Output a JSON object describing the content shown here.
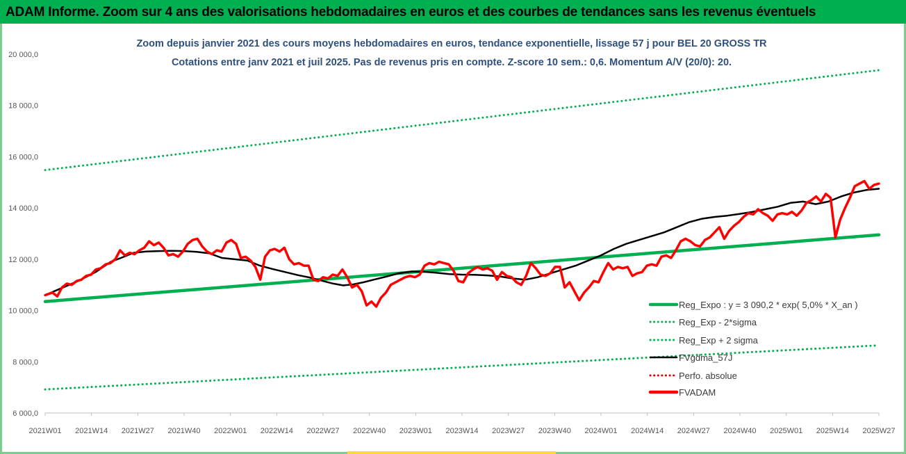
{
  "banner": {
    "title": "ADAM Informe. Zoom sur 4 ans des valorisations hebdomadaires en euros et des courbes de tendances sans les revenus éventuels"
  },
  "chart_data": {
    "type": "line",
    "title_line1": "Zoom depuis janvier 2021 des cours moyens hebdomadaires en euros, tendance exponentielle, lissage 57 j pour BEL 20 GROSS TR",
    "title_line2": "Cotations entre janv 2021 et juil 2025. Pas de revenus pris en compte. Z-score 10 sem.: 0,6. Momentum A/V (20/0): 20.",
    "x_ticks": [
      "2021W01",
      "2021W14",
      "2021W27",
      "2021W40",
      "2022W01",
      "2022W14",
      "2022W27",
      "2022W40",
      "2023W01",
      "2023W14",
      "2023W27",
      "2023W40",
      "2024W01",
      "2024W14",
      "2024W27",
      "2024W40",
      "2025W01",
      "2025W14",
      "2025W27"
    ],
    "y_ticks": [
      "6 000,0",
      "8 000,0",
      "10 000,0",
      "12 000,0",
      "14 000,0",
      "16 000,0",
      "18 000,0",
      "20 000,0"
    ],
    "ylim": [
      6000,
      20000
    ],
    "x_range_weeks": [
      0,
      234
    ],
    "grid": false,
    "legend_position": "bottom-right",
    "series": [
      {
        "name": "Reg_Expo : y = 3 090,2 * exp( 5,0% *  X_an )",
        "color": "#00b050",
        "style": "solid-thick",
        "points": [
          [
            0,
            10350
          ],
          [
            234,
            12950
          ]
        ]
      },
      {
        "name": "Reg_Exp - 2*sigma",
        "color": "#00b050",
        "style": "dotted",
        "points": [
          [
            0,
            6920
          ],
          [
            234,
            8640
          ]
        ]
      },
      {
        "name": "Reg_Exp + 2 sigma",
        "color": "#00b050",
        "style": "dotted",
        "points": [
          [
            0,
            15480
          ],
          [
            234,
            19380
          ]
        ]
      },
      {
        "name": "FVgdma_57J",
        "color": "#000000",
        "style": "solid",
        "points": [
          [
            0,
            10600
          ],
          [
            6,
            10850
          ],
          [
            13,
            11150
          ],
          [
            20,
            11500
          ],
          [
            26,
            11900
          ],
          [
            30,
            12050
          ],
          [
            35,
            12250
          ],
          [
            40,
            12300
          ],
          [
            45,
            12320
          ],
          [
            50,
            12330
          ],
          [
            55,
            12320
          ],
          [
            60,
            12290
          ],
          [
            65,
            12230
          ],
          [
            70,
            12050
          ],
          [
            75,
            12000
          ],
          [
            80,
            11950
          ],
          [
            85,
            11750
          ],
          [
            90,
            11620
          ],
          [
            95,
            11500
          ],
          [
            100,
            11380
          ],
          [
            105,
            11280
          ],
          [
            110,
            11150
          ],
          [
            114,
            11050
          ],
          [
            118,
            10980
          ],
          [
            122,
            11020
          ],
          [
            126,
            11100
          ],
          [
            130,
            11200
          ],
          [
            135,
            11320
          ],
          [
            140,
            11450
          ],
          [
            145,
            11520
          ],
          [
            150,
            11510
          ],
          [
            155,
            11470
          ],
          [
            160,
            11420
          ],
          [
            165,
            11400
          ],
          [
            170,
            11390
          ],
          [
            175,
            11370
          ],
          [
            180,
            11330
          ],
          [
            185,
            11250
          ],
          [
            190,
            11200
          ],
          [
            195,
            11300
          ],
          [
            200,
            11450
          ],
          [
            205,
            11600
          ],
          [
            210,
            11750
          ],
          [
            215,
            11950
          ],
          [
            220,
            12150
          ],
          [
            225,
            12400
          ],
          [
            230,
            12600
          ],
          [
            235,
            12750
          ],
          [
            240,
            12900
          ],
          [
            245,
            13050
          ],
          [
            250,
            13250
          ],
          [
            255,
            13450
          ],
          [
            260,
            13580
          ],
          [
            265,
            13650
          ],
          [
            270,
            13700
          ],
          [
            275,
            13770
          ],
          [
            280,
            13850
          ],
          [
            285,
            13950
          ],
          [
            290,
            14050
          ],
          [
            295,
            14200
          ],
          [
            300,
            14250
          ],
          [
            305,
            14150
          ],
          [
            310,
            14250
          ],
          [
            315,
            14450
          ],
          [
            320,
            14600
          ],
          [
            325,
            14700
          ],
          [
            330,
            14750
          ]
        ]
      },
      {
        "name": "Perfo. absolue",
        "color": "#e00000",
        "style": "dotted",
        "points": []
      },
      {
        "name": "FVADAM",
        "color": "#ff0000",
        "style": "solid-thick",
        "points": [
          [
            0,
            10600
          ],
          [
            3,
            10700
          ],
          [
            5,
            10550
          ],
          [
            7,
            10900
          ],
          [
            9,
            11050
          ],
          [
            11,
            11000
          ],
          [
            13,
            11150
          ],
          [
            15,
            11200
          ],
          [
            17,
            11350
          ],
          [
            19,
            11400
          ],
          [
            21,
            11600
          ],
          [
            23,
            11650
          ],
          [
            25,
            11800
          ],
          [
            27,
            11850
          ],
          [
            29,
            12000
          ],
          [
            31,
            12350
          ],
          [
            33,
            12150
          ],
          [
            35,
            12250
          ],
          [
            37,
            12200
          ],
          [
            39,
            12350
          ],
          [
            41,
            12450
          ],
          [
            43,
            12700
          ],
          [
            45,
            12550
          ],
          [
            47,
            12650
          ],
          [
            49,
            12450
          ],
          [
            51,
            12150
          ],
          [
            53,
            12200
          ],
          [
            55,
            12100
          ],
          [
            57,
            12300
          ],
          [
            59,
            12600
          ],
          [
            61,
            12750
          ],
          [
            63,
            12800
          ],
          [
            65,
            12500
          ],
          [
            67,
            12300
          ],
          [
            69,
            12200
          ],
          [
            71,
            12350
          ],
          [
            73,
            12300
          ],
          [
            75,
            12650
          ],
          [
            77,
            12750
          ],
          [
            79,
            12600
          ],
          [
            81,
            12050
          ],
          [
            83,
            12100
          ],
          [
            85,
            11950
          ],
          [
            87,
            11700
          ],
          [
            89,
            11200
          ],
          [
            91,
            12100
          ],
          [
            93,
            12350
          ],
          [
            95,
            12400
          ],
          [
            97,
            12300
          ],
          [
            99,
            12450
          ],
          [
            101,
            12000
          ],
          [
            103,
            11800
          ],
          [
            105,
            11850
          ],
          [
            107,
            11750
          ],
          [
            109,
            11750
          ],
          [
            111,
            11200
          ],
          [
            113,
            11150
          ],
          [
            115,
            11300
          ],
          [
            117,
            11250
          ],
          [
            119,
            11400
          ],
          [
            121,
            11350
          ],
          [
            123,
            11600
          ],
          [
            125,
            11300
          ],
          [
            127,
            10900
          ],
          [
            129,
            11000
          ],
          [
            131,
            10750
          ],
          [
            133,
            10200
          ],
          [
            135,
            10350
          ],
          [
            137,
            10150
          ],
          [
            139,
            10500
          ],
          [
            141,
            10700
          ],
          [
            143,
            11000
          ],
          [
            145,
            11100
          ],
          [
            147,
            11200
          ],
          [
            149,
            11300
          ],
          [
            151,
            11350
          ],
          [
            153,
            11300
          ],
          [
            155,
            11400
          ],
          [
            157,
            11750
          ],
          [
            159,
            11850
          ],
          [
            161,
            11800
          ],
          [
            163,
            11900
          ],
          [
            165,
            11850
          ],
          [
            167,
            11800
          ],
          [
            169,
            11550
          ],
          [
            171,
            11150
          ],
          [
            173,
            11100
          ],
          [
            175,
            11450
          ],
          [
            177,
            11600
          ],
          [
            179,
            11700
          ],
          [
            181,
            11600
          ],
          [
            183,
            11650
          ],
          [
            185,
            11550
          ],
          [
            187,
            11200
          ],
          [
            189,
            11500
          ],
          [
            191,
            11350
          ],
          [
            193,
            11300
          ],
          [
            195,
            11100
          ],
          [
            197,
            11000
          ],
          [
            199,
            11350
          ],
          [
            201,
            11850
          ],
          [
            203,
            11650
          ],
          [
            205,
            11400
          ],
          [
            207,
            11350
          ],
          [
            209,
            11450
          ],
          [
            211,
            11700
          ],
          [
            213,
            11700
          ],
          [
            215,
            10900
          ],
          [
            217,
            11100
          ],
          [
            219,
            10750
          ],
          [
            221,
            10400
          ],
          [
            223,
            10700
          ],
          [
            225,
            10900
          ],
          [
            227,
            11150
          ],
          [
            229,
            11100
          ],
          [
            231,
            11500
          ],
          [
            233,
            11850
          ],
          [
            235,
            11600
          ],
          [
            237,
            11700
          ],
          [
            239,
            11650
          ],
          [
            241,
            11700
          ],
          [
            243,
            11350
          ],
          [
            245,
            11450
          ],
          [
            247,
            11500
          ],
          [
            249,
            11750
          ],
          [
            251,
            11800
          ],
          [
            253,
            11750
          ],
          [
            255,
            12100
          ],
          [
            257,
            12150
          ],
          [
            259,
            12050
          ],
          [
            261,
            12350
          ],
          [
            263,
            12700
          ],
          [
            265,
            12800
          ],
          [
            267,
            12700
          ],
          [
            269,
            12550
          ],
          [
            271,
            12500
          ],
          [
            273,
            12750
          ],
          [
            275,
            12850
          ],
          [
            277,
            13050
          ],
          [
            279,
            13250
          ],
          [
            281,
            12800
          ],
          [
            283,
            13100
          ],
          [
            285,
            13300
          ],
          [
            287,
            13450
          ],
          [
            289,
            13650
          ],
          [
            291,
            13800
          ],
          [
            293,
            13750
          ],
          [
            295,
            13950
          ],
          [
            297,
            13800
          ],
          [
            299,
            13700
          ],
          [
            301,
            13500
          ],
          [
            303,
            13750
          ],
          [
            305,
            13800
          ],
          [
            307,
            13750
          ],
          [
            309,
            13850
          ],
          [
            311,
            13700
          ],
          [
            313,
            13900
          ],
          [
            315,
            14200
          ],
          [
            317,
            14300
          ],
          [
            319,
            14450
          ],
          [
            321,
            14250
          ],
          [
            323,
            14550
          ],
          [
            325,
            14400
          ],
          [
            327,
            12850
          ],
          [
            329,
            13550
          ],
          [
            331,
            14000
          ],
          [
            333,
            14400
          ],
          [
            335,
            14850
          ],
          [
            337,
            14950
          ],
          [
            339,
            15050
          ],
          [
            341,
            14750
          ],
          [
            343,
            14900
          ],
          [
            345,
            14950
          ]
        ]
      }
    ]
  }
}
